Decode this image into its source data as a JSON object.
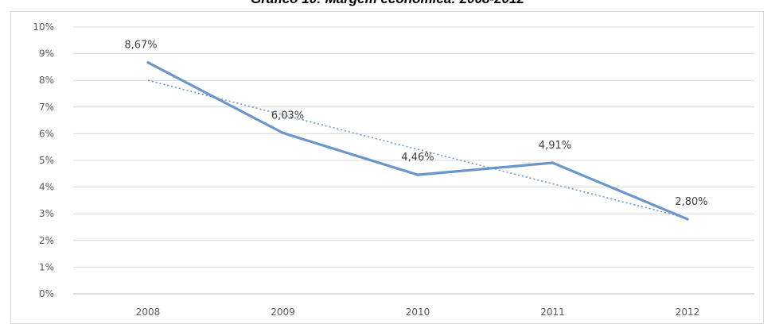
{
  "chart_data": {
    "type": "line",
    "title": "Gráfico 10: Margem econômica: 2008-2012",
    "xlabel": "",
    "ylabel": "",
    "categories": [
      "2008",
      "2009",
      "2010",
      "2011",
      "2012"
    ],
    "series": [
      {
        "values": [
          8.67,
          6.03,
          4.46,
          4.91,
          2.8
        ],
        "data_labels": [
          "8,67%",
          "6,03%",
          "4,46%",
          "4,91%",
          "2,80%"
        ],
        "color": "#6b96c9"
      }
    ],
    "trendline": {
      "type": "linear",
      "style": "dotted",
      "color": "#6b96c9",
      "start": 8.0,
      "end": 2.83
    },
    "ylim": [
      0,
      10
    ],
    "yticks": [
      "0%",
      "1%",
      "2%",
      "3%",
      "4%",
      "5%",
      "6%",
      "7%",
      "8%",
      "9%",
      "10%"
    ],
    "grid": true,
    "legend": "none"
  }
}
